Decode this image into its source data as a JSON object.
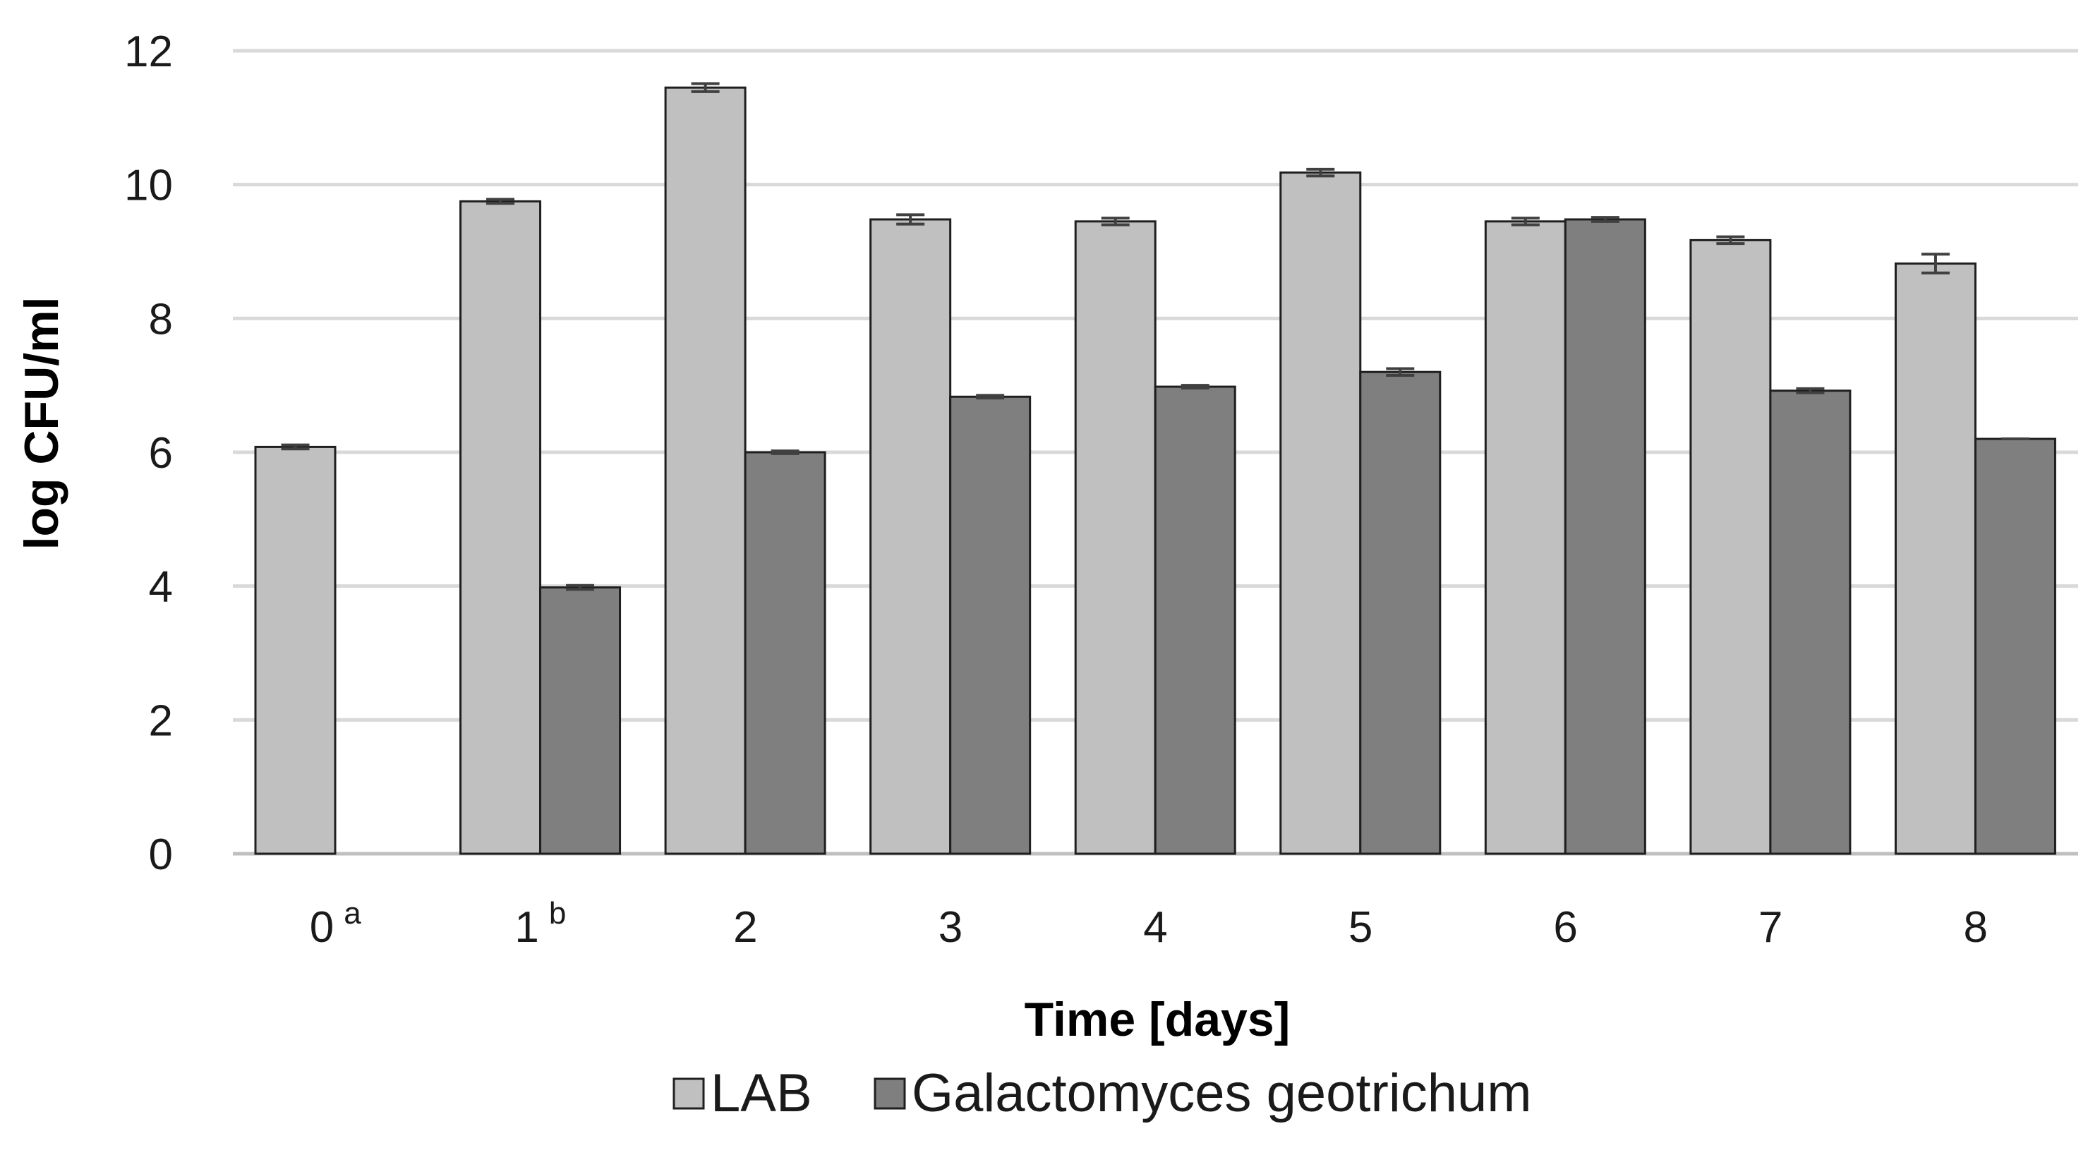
{
  "chart_data": {
    "type": "bar",
    "title": "",
    "xlabel": "Time [days]",
    "ylabel": "log CFU/ml",
    "ylim": [
      0,
      12
    ],
    "yticks": [
      0,
      2,
      4,
      6,
      8,
      10,
      12
    ],
    "grid": true,
    "legend_position": "bottom",
    "categories": [
      {
        "label": "0",
        "superscript": "a"
      },
      {
        "label": "1",
        "superscript": "b"
      },
      {
        "label": "2",
        "superscript": ""
      },
      {
        "label": "3",
        "superscript": ""
      },
      {
        "label": "4",
        "superscript": ""
      },
      {
        "label": "5",
        "superscript": ""
      },
      {
        "label": "6",
        "superscript": ""
      },
      {
        "label": "7",
        "superscript": ""
      },
      {
        "label": "8",
        "superscript": ""
      }
    ],
    "series": [
      {
        "name": "LAB",
        "color": "#c0c0c0",
        "values": [
          6.08,
          9.75,
          11.45,
          9.48,
          9.45,
          10.18,
          9.45,
          9.17,
          8.82
        ],
        "errors": [
          0.03,
          0.03,
          0.06,
          0.07,
          0.05,
          0.05,
          0.05,
          0.05,
          0.14
        ]
      },
      {
        "name": "Galactomyces geotrichum",
        "color": "#7f7f7f",
        "values": [
          null,
          3.98,
          6.0,
          6.83,
          6.98,
          7.2,
          9.48,
          6.92,
          6.2
        ],
        "errors": [
          null,
          0.03,
          0.02,
          0.02,
          0.02,
          0.05,
          0.03,
          0.03,
          0
        ]
      }
    ]
  }
}
